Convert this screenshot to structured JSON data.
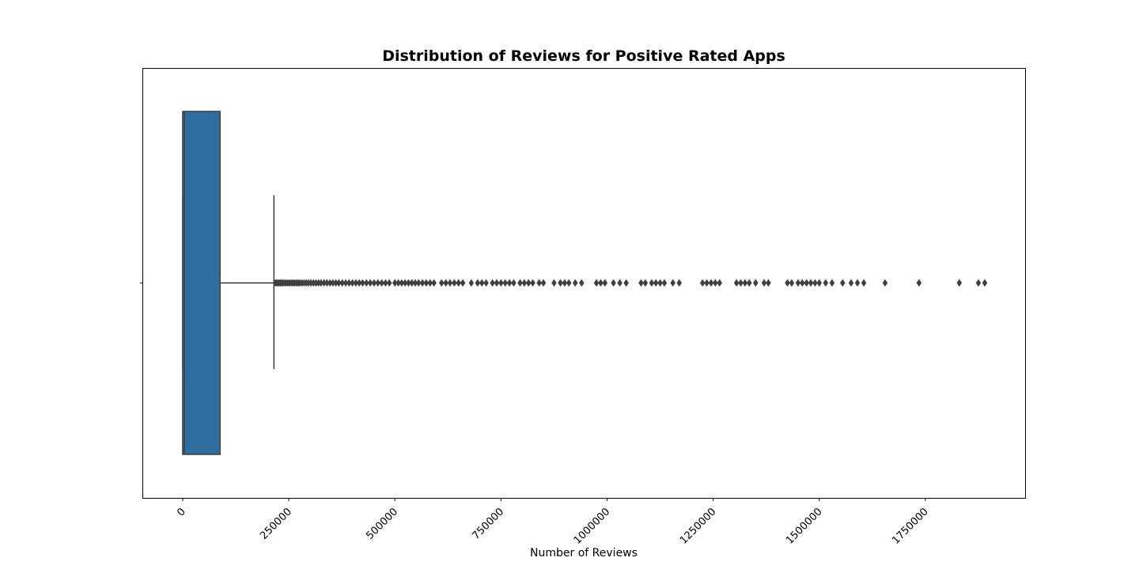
{
  "chart_data": {
    "type": "box",
    "orientation": "horizontal",
    "title": "Distribution of Reviews for Positive Rated Apps",
    "xlabel": "Number of Reviews",
    "ylabel": "",
    "xlim": [
      -95000,
      1985000
    ],
    "xticks": [
      0,
      250000,
      500000,
      750000,
      1000000,
      1250000,
      1500000,
      1750000
    ],
    "xtick_labels": [
      "0",
      "250000",
      "500000",
      "750000",
      "1000000",
      "1250000",
      "1500000",
      "1750000"
    ],
    "box": {
      "whisker_low": 0,
      "q1": 0,
      "median": 4000,
      "q3": 88000,
      "whisker_high": 215000
    },
    "box_color": "#2f6e9e",
    "line_color": "#3f3f3f",
    "outliers": [
      218000,
      221000,
      224000,
      227000,
      230000,
      233000,
      236000,
      240000,
      244000,
      248000,
      252000,
      256000,
      260000,
      264000,
      268000,
      272000,
      276000,
      281000,
      286000,
      291000,
      296000,
      302000,
      308000,
      314000,
      320000,
      326000,
      333000,
      340000,
      347000,
      354000,
      361000,
      368000,
      376000,
      384000,
      392000,
      400000,
      408000,
      416000,
      424000,
      433000,
      442000,
      451000,
      460000,
      469000,
      478000,
      487000,
      500000,
      508000,
      516000,
      524000,
      532000,
      540000,
      548000,
      556000,
      565000,
      574000,
      583000,
      592000,
      610000,
      620000,
      630000,
      640000,
      650000,
      660000,
      680000,
      695000,
      705000,
      715000,
      730000,
      740000,
      750000,
      760000,
      770000,
      780000,
      795000,
      805000,
      815000,
      825000,
      840000,
      850000,
      875000,
      890000,
      900000,
      910000,
      925000,
      940000,
      975000,
      985000,
      995000,
      1015000,
      1030000,
      1045000,
      1080000,
      1090000,
      1105000,
      1115000,
      1125000,
      1135000,
      1155000,
      1170000,
      1225000,
      1235000,
      1245000,
      1255000,
      1265000,
      1305000,
      1315000,
      1325000,
      1335000,
      1350000,
      1370000,
      1380000,
      1425000,
      1435000,
      1450000,
      1460000,
      1470000,
      1480000,
      1490000,
      1500000,
      1515000,
      1530000,
      1555000,
      1575000,
      1590000,
      1605000,
      1655000,
      1735000,
      1830000,
      1875000,
      1890000
    ]
  }
}
